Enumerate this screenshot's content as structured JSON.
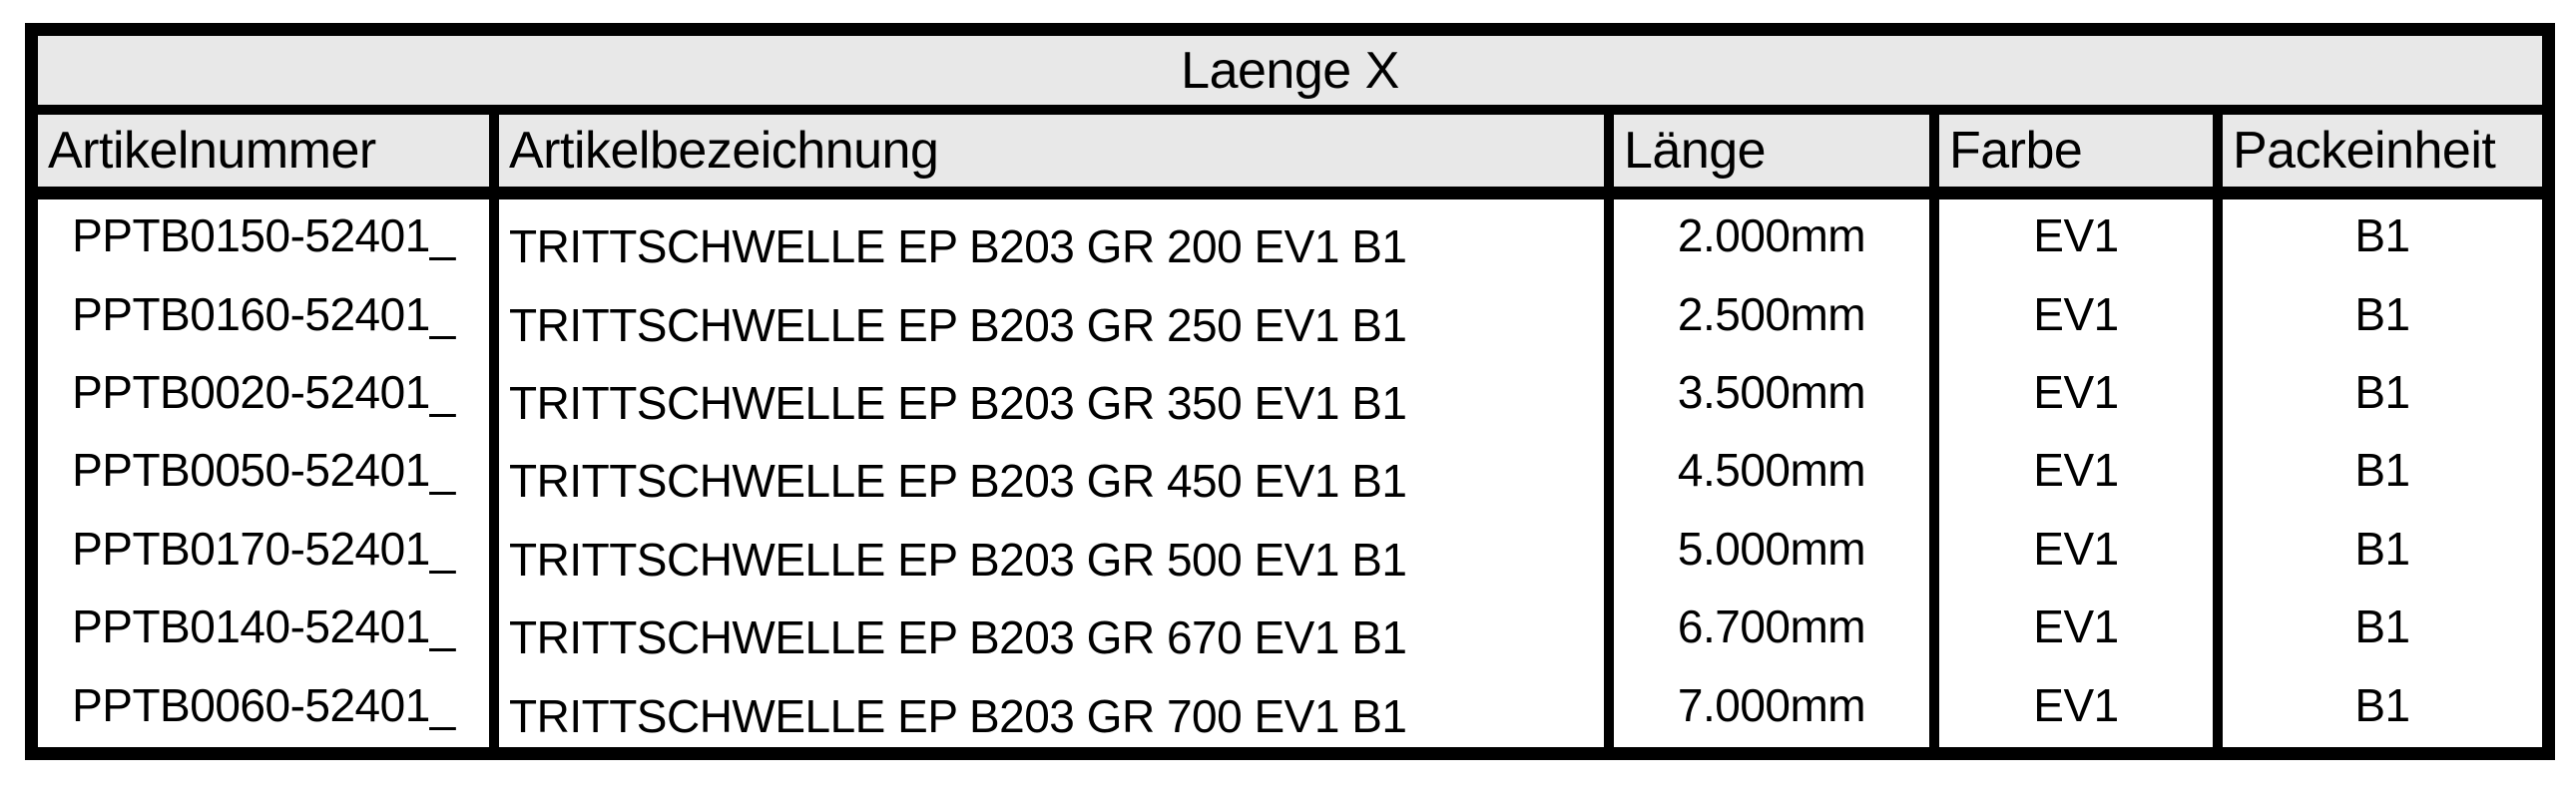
{
  "table": {
    "title": "Laenge X",
    "columns": [
      "Artikelnummer",
      "Artikelbezeichnung",
      "Länge",
      "Farbe",
      "Packeinheit"
    ],
    "rows": [
      {
        "artikelnummer": "PPTB0150-52401_",
        "artikelbezeichnung": "TRITTSCHWELLE EP B203 GR 200 EV1 B1",
        "laenge": "2.000mm",
        "farbe": "EV1",
        "packeinheit": "B1"
      },
      {
        "artikelnummer": "PPTB0160-52401_",
        "artikelbezeichnung": "TRITTSCHWELLE EP B203 GR 250 EV1 B1",
        "laenge": "2.500mm",
        "farbe": "EV1",
        "packeinheit": "B1"
      },
      {
        "artikelnummer": "PPTB0020-52401_",
        "artikelbezeichnung": "TRITTSCHWELLE EP B203 GR 350 EV1 B1",
        "laenge": "3.500mm",
        "farbe": "EV1",
        "packeinheit": "B1"
      },
      {
        "artikelnummer": "PPTB0050-52401_",
        "artikelbezeichnung": "TRITTSCHWELLE EP B203 GR 450 EV1 B1",
        "laenge": "4.500mm",
        "farbe": "EV1",
        "packeinheit": "B1"
      },
      {
        "artikelnummer": "PPTB0170-52401_",
        "artikelbezeichnung": "TRITTSCHWELLE EP B203 GR 500 EV1 B1",
        "laenge": "5.000mm",
        "farbe": "EV1",
        "packeinheit": "B1"
      },
      {
        "artikelnummer": "PPTB0140-52401_",
        "artikelbezeichnung": "TRITTSCHWELLE EP B203 GR 670 EV1 B1",
        "laenge": "6.700mm",
        "farbe": "EV1",
        "packeinheit": "B1"
      },
      {
        "artikelnummer": "PPTB0060-52401_",
        "artikelbezeichnung": "TRITTSCHWELLE EP B203 GR 700 EV1 B1",
        "laenge": "7.000mm",
        "farbe": "EV1",
        "packeinheit": "B1"
      }
    ],
    "colors": {
      "header_bg": "#e8e8e8",
      "border": "#000000",
      "row_bg": "#ffffff",
      "text": "#000000"
    }
  }
}
